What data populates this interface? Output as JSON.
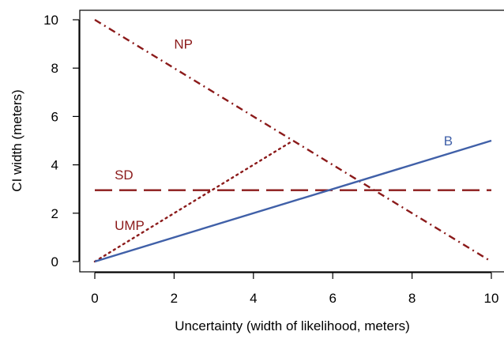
{
  "chart_data": {
    "type": "line",
    "xlabel": "Uncertainty (width of likelihood, meters)",
    "ylabel": "CI width (meters)",
    "xlim": [
      0,
      10
    ],
    "ylim": [
      0,
      10
    ],
    "xticks": [
      "0",
      "2",
      "4",
      "6",
      "8",
      "10"
    ],
    "yticks": [
      "0",
      "2",
      "4",
      "6",
      "8",
      "10"
    ],
    "grid": false,
    "legend": "none",
    "series": [
      {
        "name": "NP",
        "color": "#8b1a1a",
        "style": "dashdot",
        "x": [
          0,
          10
        ],
        "y": [
          10,
          0
        ],
        "label_at": [
          2,
          9
        ]
      },
      {
        "name": "SD",
        "color": "#8b1a1a",
        "style": "longdash",
        "x": [
          0,
          10
        ],
        "y": [
          2.95,
          2.95
        ],
        "label_at": [
          0.5,
          3.6
        ]
      },
      {
        "name": "UMP",
        "color": "#8b1a1a",
        "style": "dotted",
        "x": [
          0,
          5
        ],
        "y": [
          0,
          5
        ],
        "label_at": [
          0.5,
          1.5
        ]
      },
      {
        "name": "B",
        "color": "#4060a8",
        "style": "solid",
        "x": [
          0,
          10
        ],
        "y": [
          0,
          5
        ],
        "label_at": [
          8.8,
          5.0
        ]
      }
    ]
  }
}
